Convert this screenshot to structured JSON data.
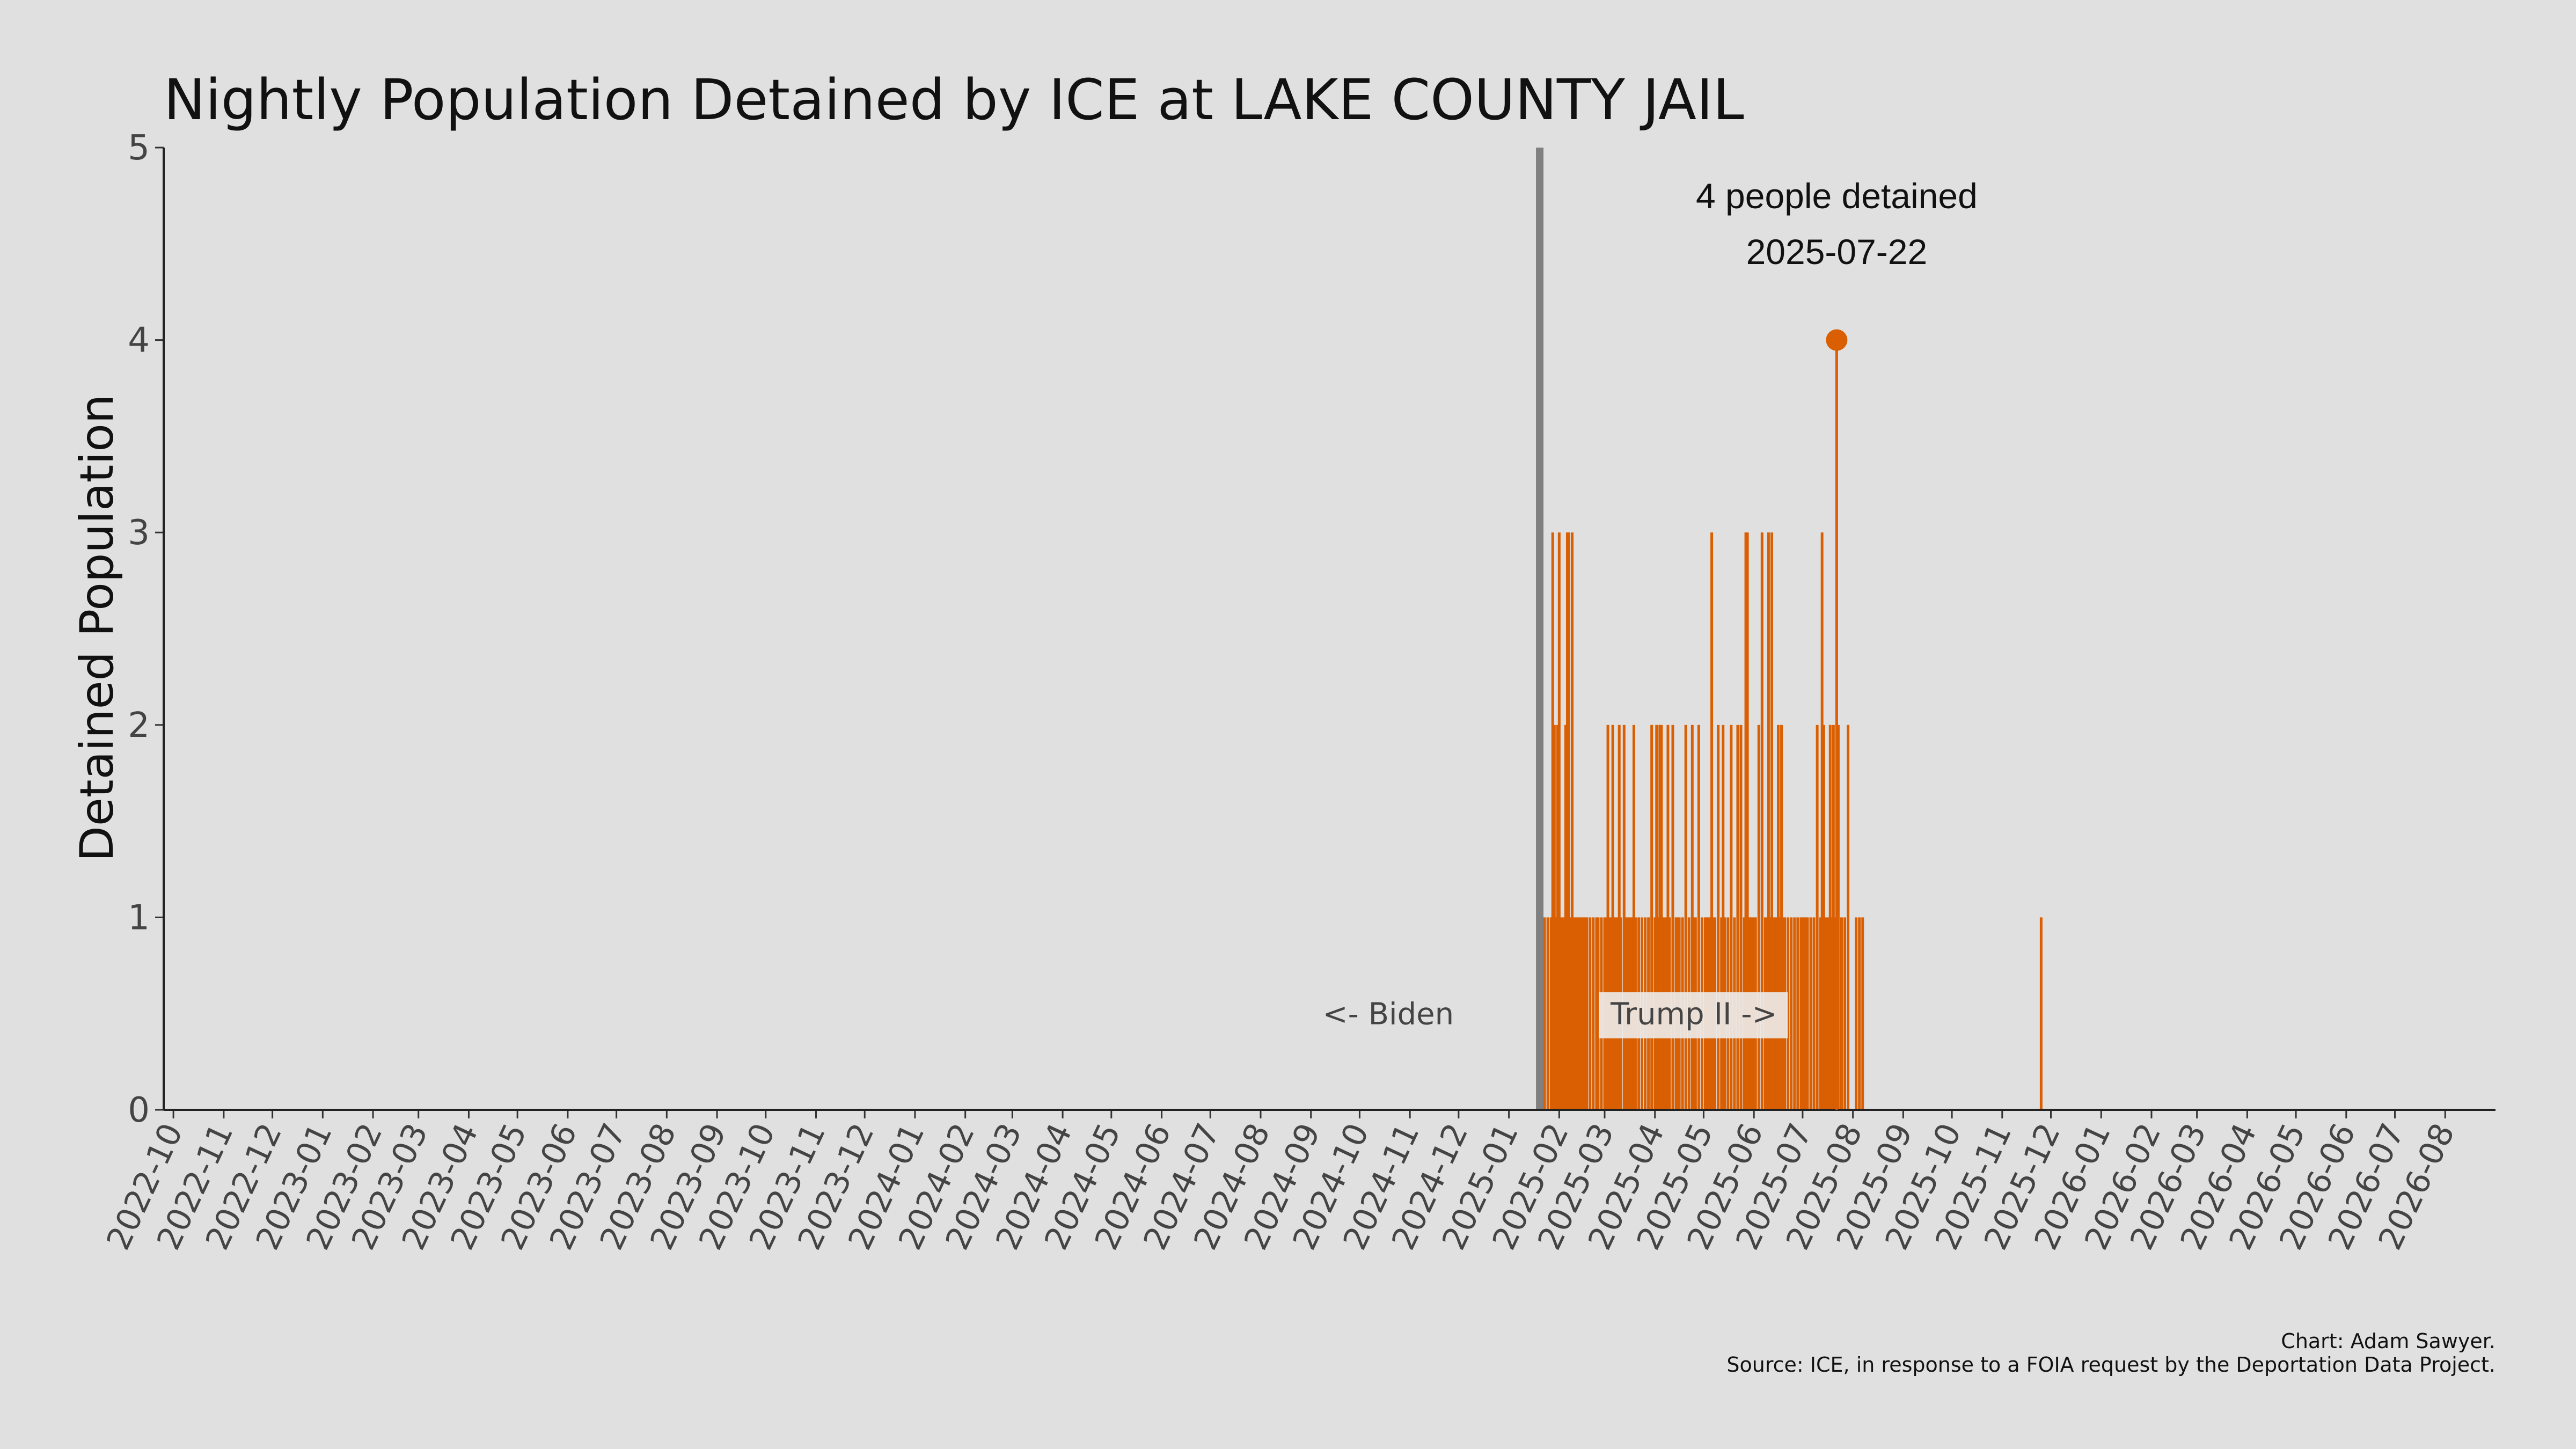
{
  "chart_data": {
    "type": "bar",
    "title": "Nightly Population Detained by ICE at LAKE COUNTY JAIL",
    "xlabel": "",
    "ylabel": "Detained Population",
    "ylim": [
      0,
      5
    ],
    "yticks": [
      "0",
      "1",
      "2",
      "3",
      "4",
      "5"
    ],
    "xlim": [
      "2022-09-25",
      "2026-09-01"
    ],
    "xticks": [
      "2022-10",
      "2022-11",
      "2022-12",
      "2023-01",
      "2023-02",
      "2023-03",
      "2023-04",
      "2023-05",
      "2023-06",
      "2023-07",
      "2023-08",
      "2023-09",
      "2023-10",
      "2023-11",
      "2023-12",
      "2024-01",
      "2024-02",
      "2024-03",
      "2024-04",
      "2024-05",
      "2024-06",
      "2024-07",
      "2024-08",
      "2024-09",
      "2024-10",
      "2024-11",
      "2024-12",
      "2025-01",
      "2025-02",
      "2025-03",
      "2025-04",
      "2025-05",
      "2025-06",
      "2025-07",
      "2025-08",
      "2025-09",
      "2025-10",
      "2025-11",
      "2025-12",
      "2026-01",
      "2026-02",
      "2026-03",
      "2026-04",
      "2026-05",
      "2026-06",
      "2026-07",
      "2026-08"
    ],
    "grid": false,
    "bar_color": "#d95f02",
    "divider": {
      "date": "2025-01-20",
      "color": "#808080"
    },
    "era_labels": {
      "left": "<- Biden",
      "right": "Trump II ->"
    },
    "peak": {
      "date": "2025-07-22",
      "value": 4,
      "label_line1": "4 people detained",
      "label_line2": "2025-07-22"
    },
    "series": [
      {
        "x": [
          "2025-01-21",
          "2025-01-23",
          "2025-01-25",
          "2025-01-27",
          "2025-01-28",
          "2025-01-29",
          "2025-01-30",
          "2025-01-31",
          "2025-02-01",
          "2025-02-02",
          "2025-02-03",
          "2025-02-04",
          "2025-02-05",
          "2025-02-06",
          "2025-02-07",
          "2025-02-08",
          "2025-02-09",
          "2025-02-10",
          "2025-02-11",
          "2025-02-12",
          "2025-02-13",
          "2025-02-14",
          "2025-02-15",
          "2025-02-16",
          "2025-02-17",
          "2025-02-18",
          "2025-02-20",
          "2025-02-22",
          "2025-02-24",
          "2025-02-25",
          "2025-02-27",
          "2025-03-01",
          "2025-03-02",
          "2025-03-03",
          "2025-03-04",
          "2025-03-05",
          "2025-03-06",
          "2025-03-07",
          "2025-03-08",
          "2025-03-09",
          "2025-03-10",
          "2025-03-11",
          "2025-03-13",
          "2025-03-14",
          "2025-03-15",
          "2025-03-16",
          "2025-03-17",
          "2025-03-18",
          "2025-03-19",
          "2025-03-20",
          "2025-03-22",
          "2025-03-24",
          "2025-03-26",
          "2025-03-28",
          "2025-03-30",
          "2025-04-01",
          "2025-04-02",
          "2025-04-03",
          "2025-04-04",
          "2025-04-05",
          "2025-04-06",
          "2025-04-07",
          "2025-04-08",
          "2025-04-09",
          "2025-04-10",
          "2025-04-12",
          "2025-04-14",
          "2025-04-15",
          "2025-04-16",
          "2025-04-18",
          "2025-04-20",
          "2025-04-22",
          "2025-04-24",
          "2025-04-25",
          "2025-04-26",
          "2025-04-28",
          "2025-04-30",
          "2025-05-02",
          "2025-05-03",
          "2025-05-04",
          "2025-05-05",
          "2025-05-06",
          "2025-05-07",
          "2025-05-08",
          "2025-05-10",
          "2025-05-12",
          "2025-05-13",
          "2025-05-14",
          "2025-05-16",
          "2025-05-18",
          "2025-05-20",
          "2025-05-22",
          "2025-05-24",
          "2025-05-26",
          "2025-05-27",
          "2025-05-28",
          "2025-05-29",
          "2025-05-30",
          "2025-05-31",
          "2025-06-01",
          "2025-06-02",
          "2025-06-04",
          "2025-06-06",
          "2025-06-08",
          "2025-06-09",
          "2025-06-10",
          "2025-06-11",
          "2025-06-12",
          "2025-06-13",
          "2025-06-14",
          "2025-06-15",
          "2025-06-16",
          "2025-06-17",
          "2025-06-18",
          "2025-06-19",
          "2025-06-20",
          "2025-06-22",
          "2025-06-24",
          "2025-06-26",
          "2025-06-28",
          "2025-06-30",
          "2025-07-01",
          "2025-07-02",
          "2025-07-03",
          "2025-07-04",
          "2025-07-06",
          "2025-07-08",
          "2025-07-10",
          "2025-07-12",
          "2025-07-13",
          "2025-07-14",
          "2025-07-15",
          "2025-07-16",
          "2025-07-17",
          "2025-07-18",
          "2025-07-19",
          "2025-07-20",
          "2025-07-21",
          "2025-07-22",
          "2025-07-23",
          "2025-07-25",
          "2025-07-27",
          "2025-07-29",
          "2025-08-03",
          "2025-08-05",
          "2025-08-07",
          "2025-11-25"
        ],
        "values": [
          1,
          1,
          1,
          1,
          3,
          2,
          1,
          2,
          3,
          1,
          1,
          1,
          2,
          3,
          3,
          1,
          3,
          1,
          1,
          1,
          1,
          1,
          1,
          1,
          1,
          1,
          1,
          1,
          1,
          1,
          1,
          1,
          1,
          2,
          1,
          1,
          2,
          1,
          1,
          1,
          2,
          1,
          2,
          1,
          1,
          1,
          1,
          1,
          2,
          1,
          1,
          1,
          1,
          1,
          2,
          1,
          2,
          1,
          2,
          2,
          1,
          1,
          1,
          2,
          1,
          2,
          1,
          1,
          1,
          1,
          2,
          1,
          2,
          1,
          1,
          2,
          1,
          1,
          1,
          1,
          1,
          3,
          1,
          1,
          2,
          1,
          2,
          1,
          1,
          2,
          1,
          2,
          2,
          1,
          3,
          3,
          1,
          1,
          1,
          1,
          1,
          2,
          3,
          1,
          1,
          3,
          1,
          3,
          1,
          1,
          1,
          2,
          1,
          2,
          1,
          1,
          1,
          1,
          1,
          1,
          1,
          1,
          1,
          1,
          1,
          1,
          1,
          2,
          1,
          3,
          2,
          1,
          1,
          1,
          2,
          1,
          2,
          1,
          4,
          2,
          1,
          1,
          2,
          1,
          1,
          1,
          1
        ]
      }
    ]
  },
  "credits": {
    "line1": "Chart: Adam Sawyer.",
    "line2": "Source: ICE, in response to a FOIA request by the Deportation Data Project."
  }
}
